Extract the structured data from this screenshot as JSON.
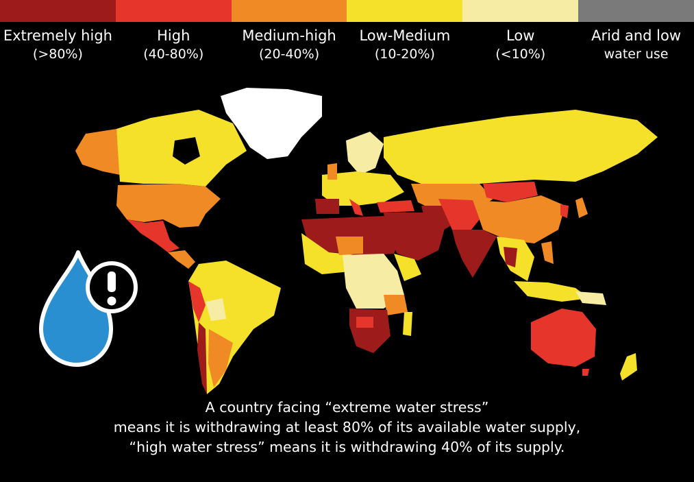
{
  "legend": [
    {
      "line1": "Extremely high",
      "line2": "(>80%)",
      "color": "#9e1b1b"
    },
    {
      "line1": "High",
      "line2": "(40-80%)",
      "color": "#e6352b"
    },
    {
      "line1": "Medium-high",
      "line2": "(20-40%)",
      "color": "#f08a24"
    },
    {
      "line1": "Low-Medium",
      "line2": "(10-20%)",
      "color": "#f5e12a"
    },
    {
      "line1": "Low",
      "line2": "(<10%)",
      "color": "#f7eca4"
    },
    {
      "line1": "Arid and low",
      "line2": "water use",
      "color": "#7a7a7a"
    }
  ],
  "colors": {
    "extremely_high": "#9e1b1b",
    "high": "#e6352b",
    "medium_high": "#f08a24",
    "low_medium": "#f5e12a",
    "low": "#f7eca4",
    "arid": "#7a7a7a",
    "no_data": "#ffffff",
    "drop": "#2a8fd0"
  },
  "icons": [
    "water-drop-icon",
    "exclamation-icon"
  ],
  "caption": {
    "line1": "A country facing “extreme water stress”",
    "line2": "means it is withdrawing at least 80% of its available water supply,",
    "line3": "“high water stress” means it is withdrawing 40% of its supply."
  }
}
